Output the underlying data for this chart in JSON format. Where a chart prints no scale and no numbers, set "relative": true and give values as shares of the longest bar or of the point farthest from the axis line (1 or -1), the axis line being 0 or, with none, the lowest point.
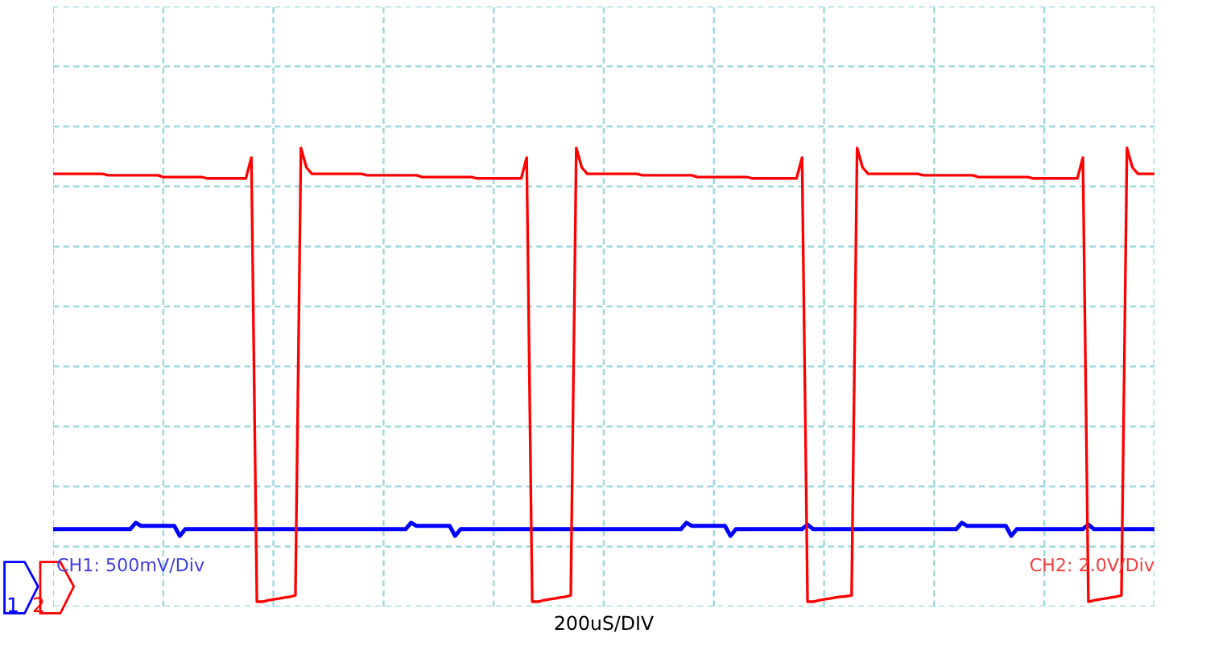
{
  "chart_data": {
    "type": "line",
    "relative": true,
    "xlabel": "200uS/DIV",
    "grid": true,
    "tick_labels": false,
    "marker": "none",
    "line_style": "solid",
    "annotations": [
      "CH1: 500mV/Div",
      "CH2: 2.0V/Div",
      "1",
      "2"
    ],
    "categories": [
      null,
      null,
      null,
      null,
      null,
      null,
      null,
      null,
      null,
      null,
      null,
      null,
      null,
      null,
      null,
      null,
      null,
      null,
      null,
      null,
      null,
      null,
      null,
      null,
      null,
      null,
      null,
      null,
      null,
      null,
      null,
      null,
      null,
      null,
      null,
      null,
      null,
      null,
      null,
      null,
      null,
      null,
      null,
      null,
      null,
      null,
      null,
      null,
      null,
      null,
      null,
      null,
      null,
      null,
      null,
      null,
      null,
      null,
      null,
      null,
      null,
      null,
      null,
      null,
      null,
      null,
      null,
      null,
      null,
      null,
      null,
      null,
      null,
      null,
      null,
      null,
      null,
      null,
      null,
      null,
      null,
      null,
      null,
      null,
      null,
      null,
      null,
      null,
      null,
      null,
      null,
      null,
      null,
      null,
      null,
      null,
      null,
      null,
      null,
      null,
      null,
      null,
      null,
      null,
      null,
      null,
      null,
      null,
      null,
      null,
      null,
      null,
      null,
      null,
      null,
      null,
      null,
      null,
      null,
      null,
      null,
      null,
      null,
      null,
      null,
      null,
      null,
      null,
      null,
      null,
      null,
      null,
      null,
      null,
      null,
      null,
      null,
      null,
      null,
      null,
      null,
      null,
      null,
      null,
      null,
      null,
      null,
      null,
      null,
      null,
      null,
      null,
      null,
      null,
      null,
      null,
      null,
      null,
      null,
      null,
      null,
      null,
      null,
      null,
      null,
      null,
      null,
      null,
      null,
      null,
      null,
      null,
      null,
      null,
      null,
      null,
      null,
      null,
      null,
      null,
      null,
      null,
      null,
      null,
      null,
      null,
      null,
      null,
      null,
      null,
      null,
      null,
      null,
      null,
      null,
      null,
      null,
      null,
      null,
      null,
      null
    ],
    "series": [
      {
        "color": "#0000ff",
        "values": [
          0.16,
          0.16,
          0.16,
          0.16,
          0.16,
          0.16,
          0.16,
          0.16,
          0.16,
          0.16,
          0.16,
          0.16,
          0.16,
          0.16,
          0.16,
          0.174,
          0.167,
          0.167,
          0.167,
          0.167,
          0.167,
          0.167,
          0.167,
          0.145,
          0.16,
          0.16,
          0.16,
          0.16,
          0.16,
          0.16,
          0.16,
          0.16,
          0.16,
          0.16,
          0.16,
          0.16,
          0.16,
          0.16,
          0.16,
          0.16,
          0.16,
          0.16,
          0.16,
          0.16,
          0.16,
          0.16,
          0.16,
          0.16,
          0.16,
          0.16,
          0.16,
          0.16,
          0.16,
          0.16,
          0.16,
          0.16,
          0.16,
          0.16,
          0.16,
          0.16,
          0.16,
          0.16,
          0.16,
          0.16,
          0.16,
          0.174,
          0.167,
          0.167,
          0.167,
          0.167,
          0.167,
          0.167,
          0.167,
          0.145,
          0.16,
          0.16,
          0.16,
          0.16,
          0.16,
          0.16,
          0.16,
          0.16,
          0.16,
          0.16,
          0.16,
          0.16,
          0.16,
          0.16,
          0.16,
          0.16,
          0.16,
          0.16,
          0.16,
          0.16,
          0.16,
          0.16,
          0.16,
          0.16,
          0.16,
          0.16,
          0.16,
          0.16,
          0.16,
          0.16,
          0.16,
          0.16,
          0.16,
          0.16,
          0.16,
          0.16,
          0.16,
          0.16,
          0.16,
          0.16,
          0.16,
          0.174,
          0.167,
          0.167,
          0.167,
          0.167,
          0.167,
          0.167,
          0.167,
          0.145,
          0.16,
          0.16,
          0.16,
          0.16,
          0.16,
          0.16,
          0.16,
          0.16,
          0.16,
          0.16,
          0.16,
          0.16,
          0.16,
          0.17,
          0.16,
          0.16,
          0.16,
          0.16,
          0.16,
          0.16,
          0.16,
          0.16,
          0.16,
          0.16,
          0.16,
          0.16,
          0.16,
          0.16,
          0.16,
          0.16,
          0.16,
          0.16,
          0.16,
          0.16,
          0.16,
          0.16,
          0.16,
          0.16,
          0.16,
          0.16,
          0.16,
          0.174,
          0.167,
          0.167,
          0.167,
          0.167,
          0.167,
          0.167,
          0.167,
          0.167,
          0.145,
          0.16,
          0.16,
          0.16,
          0.16,
          0.16,
          0.16,
          0.16,
          0.16,
          0.16,
          0.16,
          0.16,
          0.16,
          0.16,
          0.17,
          0.16,
          0.16,
          0.16,
          0.16,
          0.16,
          0.16,
          0.16,
          0.16,
          0.16,
          0.16,
          0.16,
          0.16
        ]
      },
      {
        "color": "#ff0000",
        "values": [
          0.943,
          0.943,
          0.943,
          0.943,
          0.943,
          0.943,
          0.943,
          0.943,
          0.943,
          0.943,
          0.94,
          0.94,
          0.94,
          0.94,
          0.94,
          0.94,
          0.94,
          0.94,
          0.94,
          0.94,
          0.936,
          0.936,
          0.936,
          0.936,
          0.936,
          0.936,
          0.936,
          0.936,
          0.933,
          0.933,
          0.933,
          0.933,
          0.933,
          0.933,
          0.933,
          0.933,
          0.979,
          0,
          0,
          0.003,
          0.005,
          0.007,
          0.009,
          0.011,
          0.014,
          1,
          0.957,
          0.943,
          0.943,
          0.943,
          0.943,
          0.943,
          0.943,
          0.943,
          0.943,
          0.943,
          0.943,
          0.94,
          0.94,
          0.94,
          0.94,
          0.94,
          0.94,
          0.94,
          0.94,
          0.94,
          0.94,
          0.936,
          0.936,
          0.936,
          0.936,
          0.936,
          0.936,
          0.936,
          0.936,
          0.936,
          0.936,
          0.933,
          0.933,
          0.933,
          0.933,
          0.933,
          0.933,
          0.933,
          0.933,
          0.933,
          0.979,
          0,
          0,
          0.003,
          0.005,
          0.007,
          0.009,
          0.011,
          0.014,
          1,
          0.957,
          0.943,
          0.943,
          0.943,
          0.943,
          0.943,
          0.943,
          0.943,
          0.943,
          0.943,
          0.943,
          0.94,
          0.94,
          0.94,
          0.94,
          0.94,
          0.94,
          0.94,
          0.94,
          0.94,
          0.94,
          0.936,
          0.936,
          0.936,
          0.936,
          0.936,
          0.936,
          0.936,
          0.936,
          0.936,
          0.936,
          0.933,
          0.933,
          0.933,
          0.933,
          0.933,
          0.933,
          0.933,
          0.933,
          0.933,
          0.979,
          0,
          0,
          0.003,
          0.005,
          0.007,
          0.009,
          0.011,
          0.012,
          0.014,
          1,
          0.957,
          0.943,
          0.943,
          0.943,
          0.943,
          0.943,
          0.943,
          0.943,
          0.943,
          0.943,
          0.943,
          0.94,
          0.94,
          0.94,
          0.94,
          0.94,
          0.94,
          0.94,
          0.94,
          0.94,
          0.94,
          0.936,
          0.936,
          0.936,
          0.936,
          0.936,
          0.936,
          0.936,
          0.936,
          0.936,
          0.936,
          0.933,
          0.933,
          0.933,
          0.933,
          0.933,
          0.933,
          0.933,
          0.933,
          0.933,
          0.979,
          0,
          0.003,
          0.005,
          0.007,
          0.009,
          0.011,
          0.014,
          1,
          0.957,
          0.943,
          0.943,
          0.943,
          0.943
        ]
      }
    ]
  }
}
